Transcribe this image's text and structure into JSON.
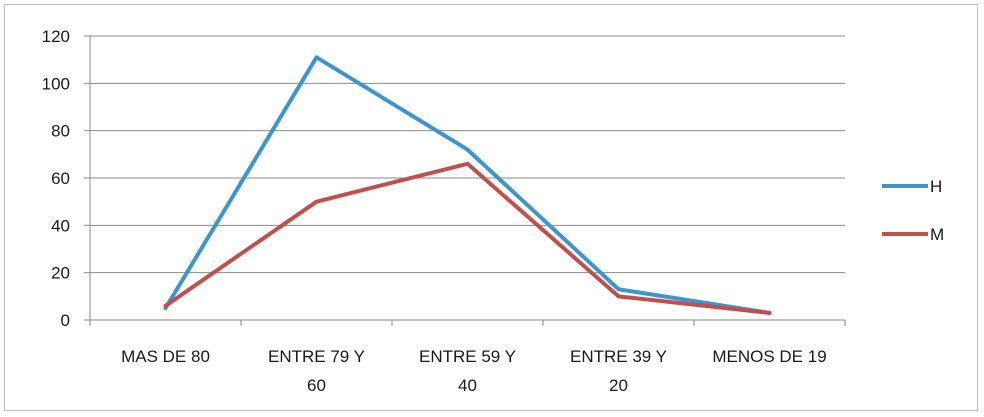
{
  "chart_data": {
    "type": "line",
    "title": "",
    "xlabel": "",
    "ylabel": "",
    "categories": [
      [
        "MAS DE 80"
      ],
      [
        "ENTRE 79 Y",
        "60"
      ],
      [
        "ENTRE 59 Y",
        "40"
      ],
      [
        "ENTRE 39 Y",
        "20"
      ],
      [
        "MENOS DE 19"
      ]
    ],
    "ylim": [
      0,
      120
    ],
    "yticks": [
      0,
      20,
      40,
      60,
      80,
      100,
      120
    ],
    "grid": "horizontal",
    "legend_position": "right",
    "series": [
      {
        "name": "H",
        "color": "#3e95cd",
        "values": [
          5,
          111,
          72,
          13,
          3
        ]
      },
      {
        "name": "M",
        "color": "#c0504d",
        "values": [
          6,
          50,
          66,
          10,
          3
        ]
      }
    ]
  }
}
